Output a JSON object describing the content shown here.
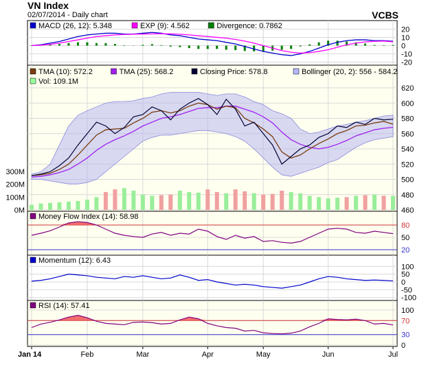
{
  "header": {
    "title": "VN Index",
    "subtitle": "02/07/2014 - Daily chart",
    "brand": "VCBS"
  },
  "x_axis": {
    "labels": [
      "Jan 14",
      "Feb",
      "Mar",
      "Apr",
      "May",
      "Jun",
      "Jul"
    ]
  },
  "chart_data": [
    {
      "type": "line",
      "panel": "MACD",
      "legend": [
        {
          "text": "MACD (26, 12): 5.348",
          "color": "#0000cc"
        },
        {
          "text": "EXP (9): 4.562",
          "color": "#ff00ff"
        },
        {
          "text": "Divergence: 0.7862",
          "color": "#008000"
        }
      ],
      "y_ticks": [
        "20",
        "10",
        "0",
        "-10",
        "-20"
      ],
      "ylim": [
        -22,
        22
      ],
      "series": [
        {
          "name": "MACD (26, 12)",
          "values": [
            0,
            1,
            3,
            5,
            8,
            11,
            13,
            14,
            15,
            15,
            14,
            14,
            15,
            16,
            15,
            13,
            12,
            10,
            8,
            7,
            6,
            4,
            2,
            -1,
            -4,
            -7,
            -9,
            -11,
            -12,
            -10,
            -7,
            -3,
            1,
            4,
            6,
            7,
            7,
            6,
            6,
            5.3
          ]
        },
        {
          "name": "EXP (9)",
          "values": [
            0,
            0.5,
            1.5,
            3,
            5,
            7,
            9,
            11,
            12,
            13,
            13.5,
            13.8,
            14,
            14.2,
            14.4,
            14.2,
            13.8,
            13,
            12,
            11,
            10,
            9,
            7.5,
            5.5,
            3,
            0,
            -3,
            -6,
            -8,
            -9,
            -8.5,
            -7,
            -5,
            -2,
            1,
            3,
            4.5,
            5.2,
            5.5,
            4.6
          ]
        },
        {
          "name": "Divergence",
          "values": [
            0,
            0.5,
            1.5,
            2,
            3,
            4,
            4,
            3,
            3,
            2,
            0.5,
            0.2,
            1,
            1.8,
            0.6,
            -1.2,
            -1.8,
            -3,
            -4,
            -4,
            -4,
            -5,
            -5.5,
            -6.5,
            -7,
            -7,
            -6,
            -5,
            -4,
            -1,
            1.5,
            4,
            6,
            6,
            5,
            4,
            2.5,
            0.8,
            0.5,
            0.8
          ]
        }
      ]
    },
    {
      "type": "line",
      "panel": "Price",
      "legend": [
        {
          "text": "TMA (10): 572.2",
          "color": "#7a3b10"
        },
        {
          "text": "TMA (25): 568.2",
          "color": "#a020f0"
        },
        {
          "text": "Closing Price: 578.8",
          "color": "#000033"
        },
        {
          "text": "Bollinger (20, 2): 556 - 584.2",
          "color": "#b5b5ff"
        },
        {
          "text": "Vol: 109.1M",
          "color": "#99ff99"
        }
      ],
      "y_ticks": [
        "620",
        "600",
        "580",
        "560",
        "540",
        "520",
        "500",
        "480",
        "460"
      ],
      "vol_ticks": [
        "300M",
        "200M",
        "100M",
        "0M"
      ],
      "ylim": [
        460,
        620
      ],
      "closing": [
        505,
        507,
        510,
        518,
        528,
        545,
        560,
        575,
        570,
        560,
        568,
        582,
        585,
        595,
        590,
        578,
        592,
        600,
        606,
        598,
        585,
        605,
        592,
        570,
        575,
        560,
        545,
        520,
        530,
        540,
        545,
        555,
        560,
        570,
        568,
        575,
        572,
        580,
        578,
        578.8
      ],
      "tma10": [
        505,
        506,
        508,
        513,
        520,
        532,
        545,
        558,
        565,
        566,
        567,
        574,
        580,
        588,
        590,
        587,
        590,
        596,
        600,
        598,
        592,
        596,
        594,
        580,
        574,
        566,
        556,
        536,
        528,
        532,
        540,
        547,
        553,
        560,
        564,
        570,
        571,
        574,
        576,
        572.2
      ],
      "tma25": [
        503,
        504,
        506,
        509,
        513,
        520,
        528,
        538,
        546,
        552,
        557,
        563,
        570,
        575,
        580,
        582,
        585,
        589,
        593,
        594,
        594,
        596,
        596,
        592,
        588,
        582,
        574,
        562,
        552,
        546,
        542,
        540,
        542,
        546,
        551,
        557,
        561,
        565,
        567,
        568.2
      ],
      "boll_upper": [
        507,
        510,
        520,
        545,
        570,
        584,
        590,
        595,
        600,
        602,
        602,
        603,
        606,
        608,
        612,
        614,
        614,
        614,
        614,
        612,
        610,
        612,
        612,
        608,
        602,
        598,
        590,
        586,
        580,
        566,
        560,
        562,
        566,
        570,
        572,
        575,
        577,
        580,
        583,
        584.2
      ],
      "boll_lower": [
        500,
        500,
        498,
        496,
        494,
        494,
        496,
        500,
        510,
        520,
        530,
        540,
        550,
        555,
        558,
        558,
        560,
        562,
        564,
        564,
        562,
        560,
        556,
        550,
        540,
        528,
        516,
        506,
        504,
        508,
        512,
        516,
        522,
        526,
        534,
        542,
        548,
        552,
        554,
        556
      ],
      "volume": [
        40,
        50,
        55,
        60,
        65,
        70,
        80,
        100,
        140,
        160,
        170,
        150,
        120,
        110,
        115,
        120,
        150,
        140,
        135,
        160,
        140,
        130,
        160,
        145,
        130,
        120,
        125,
        150,
        140,
        130,
        110,
        100,
        90,
        95,
        100,
        110,
        115,
        120,
        110,
        109.1
      ]
    },
    {
      "type": "line",
      "panel": "Money Flow Index",
      "legend": [
        {
          "text": "Money Flow Index (14): 58.98",
          "color": "#800080"
        }
      ],
      "y_ticks": [
        "80",
        "50",
        "20"
      ],
      "ylim": [
        10,
        90
      ],
      "thresholds": [
        80,
        20
      ],
      "values": [
        55,
        60,
        66,
        75,
        85,
        88,
        86,
        80,
        70,
        60,
        55,
        52,
        50,
        58,
        62,
        55,
        60,
        58,
        70,
        65,
        52,
        45,
        55,
        48,
        52,
        40,
        42,
        38,
        36,
        40,
        50,
        60,
        70,
        72,
        70,
        62,
        60,
        65,
        62,
        58.98
      ]
    },
    {
      "type": "line",
      "panel": "Momentum",
      "legend": [
        {
          "text": "Momentum (12): 6.43",
          "color": "#0000cc"
        }
      ],
      "y_ticks": [
        "100",
        "50",
        "0",
        "-50",
        "-100"
      ],
      "ylim": [
        -110,
        110
      ],
      "values": [
        5,
        10,
        20,
        35,
        50,
        45,
        40,
        30,
        25,
        20,
        35,
        30,
        40,
        30,
        20,
        25,
        45,
        30,
        10,
        15,
        0,
        -10,
        -20,
        -15,
        -20,
        -30,
        -35,
        -40,
        -30,
        -20,
        0,
        20,
        35,
        30,
        20,
        15,
        10,
        12,
        10,
        6.43
      ]
    },
    {
      "type": "line",
      "panel": "RSI",
      "legend": [
        {
          "text": "RSI (14): 57.41",
          "color": "#800080"
        }
      ],
      "y_ticks": [
        "100",
        "70",
        "30",
        "0"
      ],
      "ylim": [
        0,
        100
      ],
      "thresholds": [
        70,
        30
      ],
      "values": [
        50,
        60,
        65,
        72,
        80,
        85,
        78,
        68,
        62,
        60,
        58,
        65,
        66,
        64,
        60,
        62,
        72,
        80,
        75,
        62,
        55,
        50,
        48,
        40,
        42,
        35,
        33,
        32,
        34,
        40,
        52,
        62,
        75,
        73,
        72,
        74,
        70,
        60,
        62,
        57.41
      ]
    }
  ]
}
